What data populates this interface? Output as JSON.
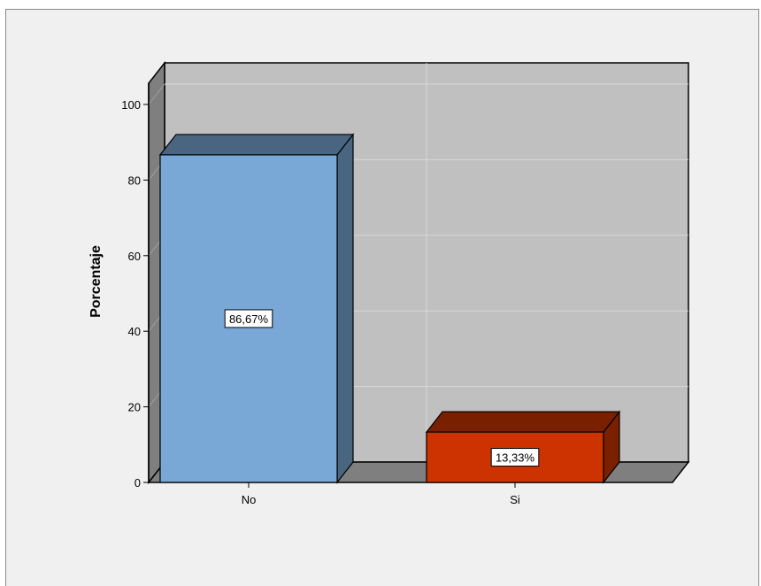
{
  "chart_data": {
    "type": "bar",
    "style": "3d",
    "categories": [
      "No",
      "Si"
    ],
    "values": [
      86.67,
      13.33
    ],
    "data_labels": [
      "86,67%",
      "13,33%"
    ],
    "title": "",
    "xlabel": "",
    "ylabel": "Porcentaje",
    "ylim": [
      0,
      100
    ],
    "yticks": [
      0,
      20,
      40,
      60,
      80,
      100
    ],
    "ytick_labels": [
      "0",
      "20",
      "40",
      "60",
      "80",
      "100"
    ],
    "grid": true,
    "colors": {
      "bars": [
        "#79a8d6",
        "#cc3300"
      ],
      "wall": "#c0c0c0",
      "side_wall": "#7f7f7f",
      "background": "#f0f0f0"
    }
  }
}
